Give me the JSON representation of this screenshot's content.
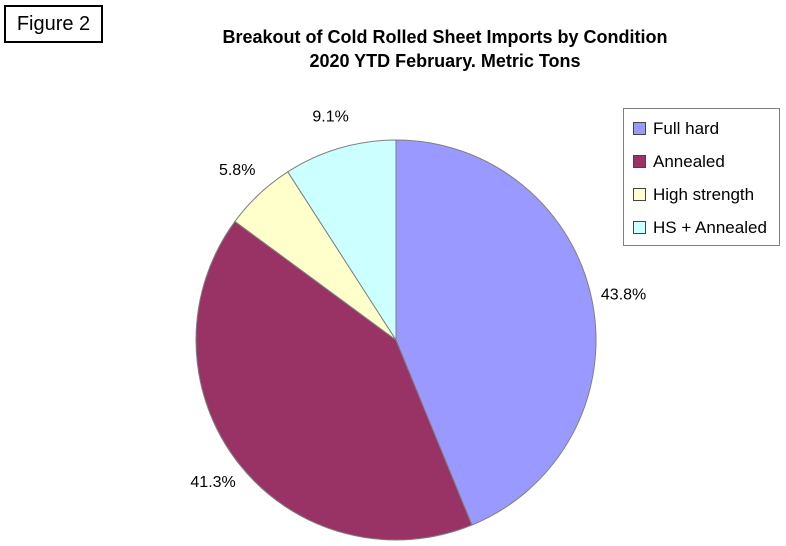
{
  "figure_label": "Figure 2",
  "chart_title": {
    "line1": "Breakout of Cold Rolled Sheet Imports by Condition",
    "line2": "2020 YTD February. Metric Tons"
  },
  "chart_data": {
    "type": "pie",
    "title": "Breakout of Cold Rolled Sheet Imports by Condition",
    "subtitle": "2020 YTD February. Metric Tons",
    "values_are": "percent_share",
    "start_angle_deg": 0,
    "direction": "clockwise",
    "legend_position": "top-right",
    "slice_border_color": "#808080",
    "label_color": "#000000",
    "slices": [
      {
        "name": "Full hard",
        "value": 43.8,
        "label": "43.8%",
        "color": "#9999FF"
      },
      {
        "name": "Annealed",
        "value": 41.3,
        "label": "41.3%",
        "color": "#993366"
      },
      {
        "name": "High strength",
        "value": 5.8,
        "label": "5.8%",
        "color": "#FFFFCC"
      },
      {
        "name": "HS + Annealed",
        "value": 9.1,
        "label": "9.1%",
        "color": "#CCFFFF"
      }
    ]
  }
}
